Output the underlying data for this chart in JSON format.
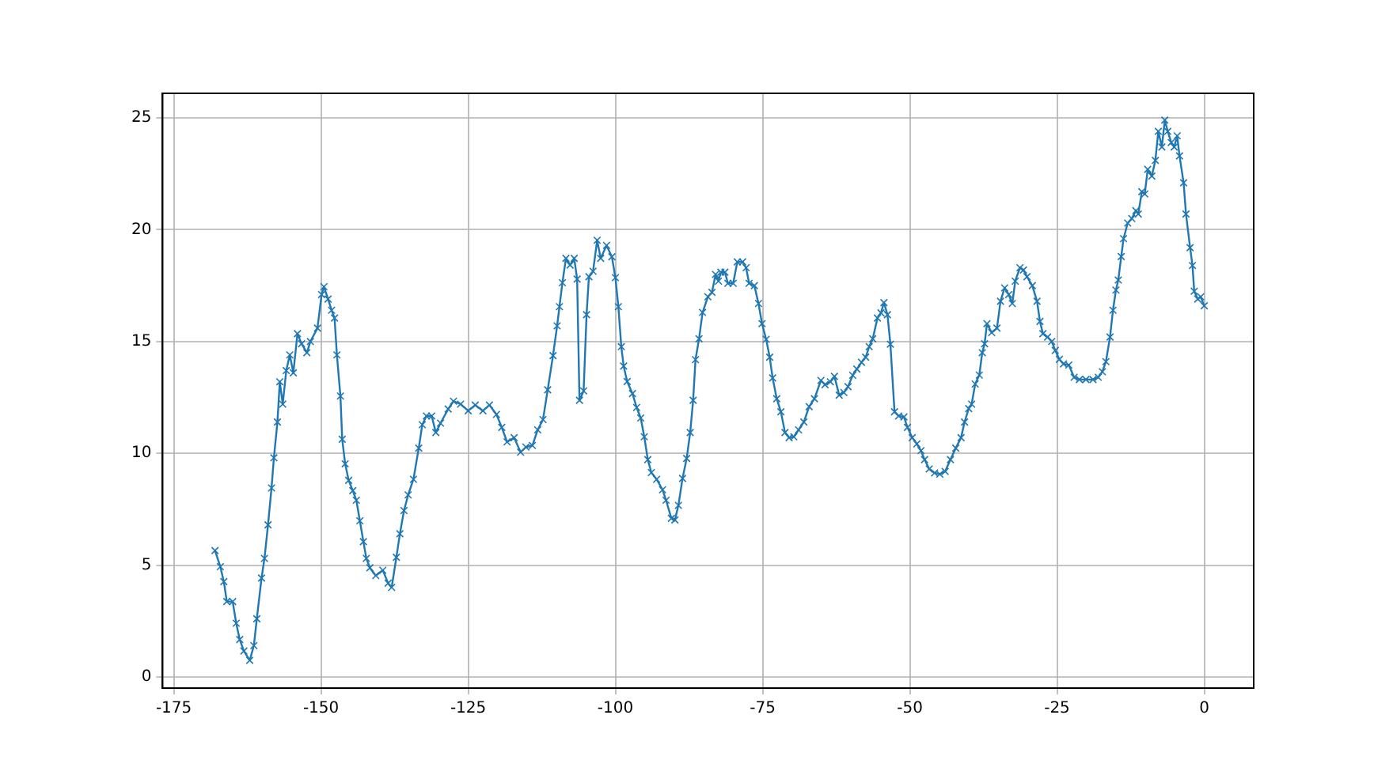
{
  "chart_data": {
    "type": "line",
    "marker": "cross",
    "grid": true,
    "line_style": "solid",
    "xlim": [
      -176.9,
      8.4
    ],
    "ylim": [
      -0.5,
      26.1
    ],
    "xticks": [
      -175,
      -150,
      -125,
      -100,
      -75,
      -50,
      -25,
      0
    ],
    "yticks": [
      0,
      5,
      10,
      15,
      20,
      25
    ],
    "series": [
      {
        "color": "#1f77b4",
        "x": [
          -168.0,
          -167.1,
          -166.5,
          -166.0,
          -165.0,
          -164.4,
          -163.8,
          -163.1,
          -162.1,
          -161.4,
          -160.9,
          -160.1,
          -159.6,
          -159.0,
          -158.4,
          -158.0,
          -157.4,
          -157.0,
          -156.5,
          -155.9,
          -155.3,
          -154.7,
          -154.0,
          -153.3,
          -152.4,
          -151.8,
          -150.6,
          -149.9,
          -149.5,
          -148.8,
          -148.2,
          -147.7,
          -147.3,
          -146.7,
          -146.4,
          -145.9,
          -145.3,
          -144.6,
          -144.0,
          -143.4,
          -142.8,
          -142.3,
          -141.7,
          -140.7,
          -139.5,
          -138.6,
          -138.0,
          -137.2,
          -136.6,
          -135.9,
          -135.2,
          -134.3,
          -133.4,
          -132.8,
          -132.1,
          -131.2,
          -130.5,
          -129.7,
          -128.4,
          -127.5,
          -126.3,
          -125.0,
          -123.8,
          -122.5,
          -121.4,
          -120.2,
          -119.3,
          -118.4,
          -117.2,
          -116.1,
          -115.2,
          -114.1,
          -113.2,
          -112.3,
          -111.5,
          -110.6,
          -109.9,
          -109.5,
          -109.0,
          -108.4,
          -107.7,
          -107.0,
          -106.5,
          -106.1,
          -105.4,
          -104.9,
          -104.5,
          -103.8,
          -103.1,
          -102.5,
          -101.5,
          -100.6,
          -100.0,
          -99.5,
          -99.0,
          -98.6,
          -98.0,
          -97.1,
          -96.4,
          -95.7,
          -95.1,
          -94.5,
          -93.9,
          -93.0,
          -92.0,
          -91.4,
          -90.5,
          -89.9,
          -89.3,
          -88.6,
          -87.9,
          -87.3,
          -86.8,
          -86.4,
          -85.8,
          -85.2,
          -84.3,
          -83.6,
          -83.0,
          -82.5,
          -82.1,
          -81.4,
          -80.9,
          -80.0,
          -79.3,
          -78.4,
          -77.8,
          -77.3,
          -76.4,
          -75.7,
          -75.1,
          -74.4,
          -73.8,
          -73.3,
          -72.6,
          -71.9,
          -71.2,
          -70.5,
          -69.7,
          -68.9,
          -68.0,
          -67.1,
          -66.2,
          -65.1,
          -64.4,
          -63.5,
          -62.8,
          -62.0,
          -61.2,
          -60.5,
          -59.7,
          -59.0,
          -58.2,
          -57.5,
          -56.9,
          -56.3,
          -55.5,
          -54.9,
          -54.4,
          -53.8,
          -53.3,
          -52.6,
          -51.9,
          -51.0,
          -50.4,
          -49.6,
          -48.8,
          -48.1,
          -47.5,
          -46.7,
          -45.8,
          -44.9,
          -44.0,
          -43.1,
          -42.2,
          -41.3,
          -40.7,
          -40.0,
          -39.5,
          -38.9,
          -38.2,
          -37.7,
          -37.3,
          -36.9,
          -36.1,
          -35.2,
          -34.6,
          -33.9,
          -33.2,
          -32.6,
          -32.1,
          -31.3,
          -30.7,
          -30.1,
          -29.2,
          -28.4,
          -27.9,
          -27.4,
          -26.6,
          -25.9,
          -25.3,
          -24.6,
          -23.9,
          -23.0,
          -22.1,
          -21.2,
          -20.1,
          -18.9,
          -18.0,
          -17.3,
          -16.7,
          -16.0,
          -15.5,
          -15.0,
          -14.6,
          -14.1,
          -13.7,
          -13.0,
          -12.3,
          -11.6,
          -11.2,
          -10.6,
          -10.1,
          -9.6,
          -8.9,
          -8.3,
          -7.8,
          -7.2,
          -6.7,
          -6.2,
          -5.6,
          -5.1,
          -4.6,
          -4.2,
          -3.5,
          -3.1,
          -2.4,
          -2.0,
          -1.7,
          -1.1,
          -0.6,
          0.0
        ],
        "values": [
          5.65,
          4.93,
          4.26,
          3.37,
          3.37,
          2.4,
          1.67,
          1.16,
          0.74,
          1.4,
          2.6,
          4.42,
          5.3,
          6.8,
          8.45,
          9.8,
          11.4,
          13.2,
          12.2,
          13.7,
          14.4,
          13.6,
          15.35,
          14.9,
          14.5,
          15.0,
          15.6,
          17.1,
          17.45,
          16.9,
          16.4,
          16.05,
          14.4,
          12.56,
          10.63,
          9.53,
          8.79,
          8.33,
          7.9,
          6.98,
          6.05,
          5.3,
          4.88,
          4.53,
          4.77,
          4.19,
          4.0,
          5.35,
          6.4,
          7.44,
          8.14,
          8.84,
          10.23,
          11.28,
          11.67,
          11.67,
          10.93,
          11.35,
          11.98,
          12.33,
          12.2,
          11.9,
          12.16,
          11.9,
          12.16,
          11.74,
          11.16,
          10.51,
          10.7,
          10.05,
          10.28,
          10.35,
          11.05,
          11.51,
          12.84,
          14.37,
          15.7,
          16.56,
          17.63,
          18.72,
          18.42,
          18.72,
          17.79,
          12.37,
          12.79,
          16.2,
          17.9,
          18.14,
          19.53,
          18.72,
          19.3,
          18.79,
          17.86,
          16.56,
          14.77,
          13.9,
          13.21,
          12.67,
          12.05,
          11.58,
          10.74,
          9.72,
          9.14,
          8.84,
          8.37,
          7.9,
          7.09,
          7.02,
          7.67,
          8.88,
          9.77,
          10.93,
          12.37,
          14.19,
          15.12,
          16.3,
          17.0,
          17.2,
          18.0,
          17.7,
          18.1,
          18.1,
          17.6,
          17.6,
          18.56,
          18.56,
          18.3,
          17.6,
          17.5,
          16.7,
          15.8,
          15.1,
          14.3,
          13.37,
          12.44,
          11.86,
          10.93,
          10.7,
          10.74,
          11.05,
          11.4,
          12.09,
          12.44,
          13.26,
          13.07,
          13.2,
          13.44,
          12.6,
          12.72,
          12.98,
          13.49,
          13.77,
          14.07,
          14.3,
          14.77,
          15.12,
          16.05,
          16.28,
          16.74,
          16.2,
          14.88,
          11.86,
          11.67,
          11.63,
          11.16,
          10.7,
          10.42,
          10.12,
          9.72,
          9.3,
          9.12,
          9.07,
          9.19,
          9.72,
          10.23,
          10.7,
          11.4,
          12.0,
          12.2,
          13.1,
          13.5,
          14.5,
          14.9,
          15.8,
          15.4,
          15.6,
          16.8,
          17.4,
          17.1,
          16.7,
          17.7,
          18.3,
          18.2,
          17.9,
          17.5,
          16.8,
          15.9,
          15.35,
          15.2,
          15.0,
          14.6,
          14.2,
          14.0,
          13.95,
          13.4,
          13.3,
          13.3,
          13.3,
          13.4,
          13.65,
          14.1,
          15.2,
          16.4,
          17.3,
          17.75,
          18.8,
          19.6,
          20.3,
          20.5,
          20.85,
          20.7,
          21.7,
          21.6,
          22.7,
          22.4,
          23.1,
          24.4,
          23.7,
          24.9,
          24.4,
          23.9,
          23.7,
          24.2,
          23.3,
          22.1,
          20.7,
          19.2,
          18.4,
          17.25,
          16.9,
          17.0,
          16.6
        ]
      }
    ]
  }
}
